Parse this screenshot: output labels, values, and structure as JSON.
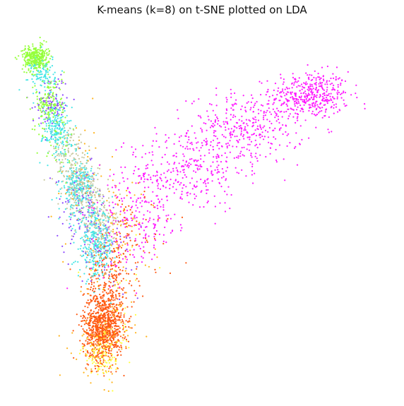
{
  "chart_data": {
    "type": "scatter",
    "title": "K-means (k=8) on t-SNE plotted on LDA",
    "xlabel": "",
    "ylabel": "",
    "axes_visible": false,
    "grid": false,
    "legend": "none",
    "xlim": [
      0,
      100
    ],
    "ylim": [
      0,
      100
    ],
    "marker": "small dot",
    "series": [
      {
        "color": "#ff1aff",
        "clusters": [
          {
            "center": [
              80,
              82
            ],
            "spread": [
              5.5,
              3.5
            ],
            "n": 420
          },
          {
            "center": [
              62,
              72
            ],
            "spread": [
              8,
              5
            ],
            "n": 360
          },
          {
            "center": [
              46,
              60
            ],
            "spread": [
              8,
              6
            ],
            "n": 260
          },
          {
            "center": [
              34,
              50
            ],
            "spread": [
              6,
              7
            ],
            "n": 180
          },
          {
            "center": [
              28,
              40
            ],
            "spread": [
              5,
              7
            ],
            "n": 70
          }
        ]
      },
      {
        "color": "#ff5a14",
        "clusters": [
          {
            "center": [
              22,
              14
            ],
            "spread": [
              2.8,
              5
            ],
            "n": 850
          },
          {
            "center": [
              24,
              28
            ],
            "spread": [
              3.5,
              6
            ],
            "n": 220
          },
          {
            "center": [
              30,
              42
            ],
            "spread": [
              6,
              7
            ],
            "n": 70
          }
        ]
      },
      {
        "color": "#ffb41e",
        "clusters": [
          {
            "center": [
              22,
              10
            ],
            "spread": [
              4,
              6
            ],
            "n": 130
          },
          {
            "center": [
              24,
              40
            ],
            "spread": [
              6,
              8
            ],
            "n": 90
          },
          {
            "center": [
              17,
              58
            ],
            "spread": [
              7,
              9
            ],
            "n": 40
          }
        ]
      },
      {
        "color": "#ffff3c",
        "clusters": [
          {
            "center": [
              22,
              6
            ],
            "spread": [
              3,
              3.5
            ],
            "n": 110
          },
          {
            "center": [
              26,
              30
            ],
            "spread": [
              5,
              7
            ],
            "n": 30
          }
        ]
      },
      {
        "color": "#46e6e6",
        "clusters": [
          {
            "center": [
              20,
              38
            ],
            "spread": [
              2.5,
              5
            ],
            "n": 320
          },
          {
            "center": [
              15,
              55
            ],
            "spread": [
              2.2,
              4
            ],
            "n": 250
          },
          {
            "center": [
              9,
              72
            ],
            "spread": [
              2,
              4
            ],
            "n": 200
          },
          {
            "center": [
              5,
              88
            ],
            "spread": [
              1.8,
              3
            ],
            "n": 110
          }
        ]
      },
      {
        "color": "#c8c8a0",
        "clusters": [
          {
            "center": [
              16,
              55
            ],
            "spread": [
              2.5,
              4
            ],
            "n": 220
          },
          {
            "center": [
              21,
              44
            ],
            "spread": [
              3,
              5
            ],
            "n": 170
          },
          {
            "center": [
              12,
              65
            ],
            "spread": [
              2.5,
              4
            ],
            "n": 90
          }
        ]
      },
      {
        "color": "#8c46ff",
        "clusters": [
          {
            "center": [
              16,
              48
            ],
            "spread": [
              3.5,
              6
            ],
            "n": 110
          },
          {
            "center": [
              8,
              80
            ],
            "spread": [
              2.5,
              4
            ],
            "n": 90
          },
          {
            "center": [
              24,
              36
            ],
            "spread": [
              4,
              5
            ],
            "n": 50
          }
        ]
      },
      {
        "color": "#96ff3c",
        "clusters": [
          {
            "center": [
              3,
              93
            ],
            "spread": [
              1.8,
              1.8
            ],
            "n": 340
          },
          {
            "center": [
              7,
              80
            ],
            "spread": [
              2,
              4
            ],
            "n": 150
          },
          {
            "center": [
              10,
              68
            ],
            "spread": [
              3,
              5
            ],
            "n": 50
          }
        ]
      }
    ]
  }
}
